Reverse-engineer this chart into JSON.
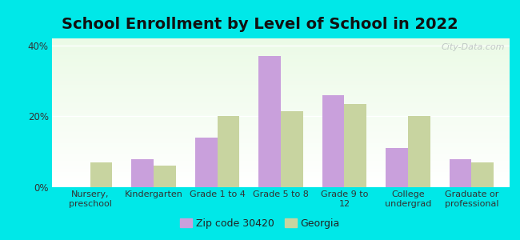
{
  "title": "School Enrollment by Level of School in 2022",
  "categories": [
    "Nursery,\npreschool",
    "Kindergarten",
    "Grade 1 to 4",
    "Grade 5 to 8",
    "Grade 9 to\n12",
    "College\nundergrad",
    "Graduate or\nprofessional"
  ],
  "zip_values": [
    0,
    8.0,
    14.0,
    37.0,
    26.0,
    11.0,
    8.0
  ],
  "georgia_values": [
    7.0,
    6.0,
    20.0,
    21.5,
    23.5,
    20.0,
    7.0
  ],
  "zip_color": "#c9a0dc",
  "georgia_color": "#c8d4a0",
  "background_outer": "#00e8e8",
  "ylim": [
    0,
    42
  ],
  "yticks": [
    0,
    20,
    40
  ],
  "ytick_labels": [
    "0%",
    "20%",
    "40%"
  ],
  "bar_width": 0.35,
  "watermark": "City-Data.com",
  "legend_zip_label": "Zip code 30420",
  "legend_georgia_label": "Georgia",
  "title_fontsize": 14,
  "label_fontsize": 8,
  "tick_fontsize": 8.5
}
